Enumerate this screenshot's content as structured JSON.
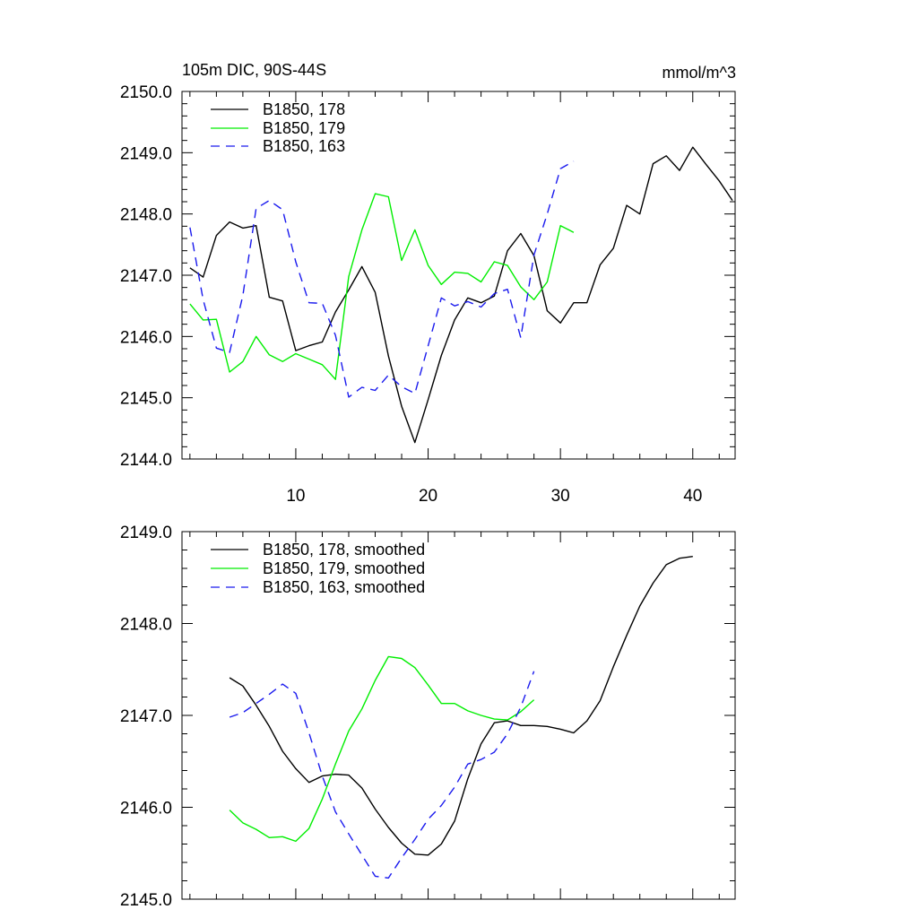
{
  "chart_data": [
    {
      "type": "line",
      "title": "105m DIC, 90S-44S",
      "units": "mmol/m^3",
      "xlabel": "",
      "ylabel": "",
      "xlim": [
        1.4,
        43.2
      ],
      "ylim": [
        2144.0,
        2150.0
      ],
      "xticks": [
        10,
        20,
        30,
        40
      ],
      "xtick_labels": [
        "10",
        "20",
        "30",
        "40"
      ],
      "yticks": [
        2144.0,
        2145.0,
        2146.0,
        2147.0,
        2148.0,
        2149.0,
        2150.0
      ],
      "ytick_labels": [
        "2144.0",
        "2145.0",
        "2146.0",
        "2147.0",
        "2148.0",
        "2149.0",
        "2150.0"
      ],
      "legend_position": "top-left",
      "series": [
        {
          "name": "B1850, 178",
          "color": "#000000",
          "dash": "solid",
          "x": [
            2,
            3,
            4,
            5,
            6,
            7,
            8,
            9,
            10,
            11,
            12,
            13,
            14,
            15,
            16,
            17,
            18,
            19,
            20,
            21,
            22,
            23,
            24,
            25,
            26,
            27,
            28,
            29,
            30,
            31,
            32,
            33,
            34,
            35,
            36,
            37,
            38,
            39,
            40,
            41,
            42,
            43
          ],
          "values": [
            2147.12,
            2146.97,
            2147.65,
            2147.87,
            2147.77,
            2147.81,
            2146.64,
            2146.58,
            2145.77,
            2145.85,
            2145.91,
            2146.4,
            2146.76,
            2147.14,
            2146.72,
            2145.68,
            2144.86,
            2144.27,
            2144.97,
            2145.69,
            2146.27,
            2146.63,
            2146.55,
            2146.66,
            2147.4,
            2147.68,
            2147.32,
            2146.42,
            2146.22,
            2146.55,
            2146.55,
            2147.17,
            2147.44,
            2148.14,
            2148.0,
            2148.82,
            2148.95,
            2148.71,
            2149.09,
            2148.81,
            2148.54,
            2148.22
          ]
        },
        {
          "name": "B1850, 179",
          "color": "#00ee00",
          "dash": "solid",
          "x": [
            2,
            3,
            4,
            5,
            6,
            7,
            8,
            9,
            10,
            11,
            12,
            13,
            14,
            15,
            16,
            17,
            18,
            19,
            20,
            21,
            22,
            23,
            24,
            25,
            26,
            27,
            28,
            29,
            30,
            31
          ],
          "values": [
            2146.53,
            2146.27,
            2146.28,
            2145.42,
            2145.59,
            2146.0,
            2145.7,
            2145.59,
            2145.72,
            2145.63,
            2145.54,
            2145.3,
            2146.98,
            2147.74,
            2148.33,
            2148.28,
            2147.24,
            2147.74,
            2147.16,
            2146.85,
            2147.05,
            2147.03,
            2146.89,
            2147.22,
            2147.16,
            2146.81,
            2146.6,
            2146.89,
            2147.81,
            2147.7
          ]
        },
        {
          "name": "B1850, 163",
          "color": "#1a1aee",
          "dash": "dashed",
          "x": [
            2,
            3,
            4,
            5,
            6,
            7,
            8,
            9,
            10,
            11,
            12,
            13,
            14,
            15,
            16,
            17,
            18,
            19,
            20,
            21,
            22,
            23,
            24,
            25,
            26,
            27,
            28,
            29,
            30,
            31
          ],
          "values": [
            2147.78,
            2146.6,
            2145.81,
            2145.74,
            2146.67,
            2148.09,
            2148.22,
            2148.07,
            2147.22,
            2146.55,
            2146.54,
            2146.02,
            2145.01,
            2145.17,
            2145.12,
            2145.37,
            2145.18,
            2145.07,
            2145.85,
            2146.63,
            2146.5,
            2146.57,
            2146.48,
            2146.7,
            2146.77,
            2145.98,
            2147.33,
            2148.0,
            2148.74,
            2148.86
          ]
        }
      ]
    },
    {
      "type": "line",
      "title": "",
      "xlabel": "",
      "ylabel": "",
      "xlim": [
        1.4,
        43.2
      ],
      "ylim": [
        2145.0,
        2149.0
      ],
      "xticks": [
        10,
        20,
        30,
        40
      ],
      "yticks": [
        2145.0,
        2146.0,
        2147.0,
        2148.0,
        2149.0
      ],
      "ytick_labels": [
        "2145.0",
        "2146.0",
        "2147.0",
        "2148.0",
        "2149.0"
      ],
      "legend_position": "top-left",
      "series": [
        {
          "name": "B1850, 178, smoothed",
          "color": "#000000",
          "dash": "solid",
          "x": [
            5,
            6,
            7,
            8,
            9,
            10,
            11,
            12,
            13,
            14,
            15,
            16,
            17,
            18,
            19,
            20,
            21,
            22,
            23,
            24,
            25,
            26,
            27,
            28,
            29,
            30,
            31,
            32,
            33,
            34,
            35,
            36,
            37,
            38,
            39,
            40
          ],
          "values": [
            2147.41,
            2147.32,
            2147.11,
            2146.88,
            2146.61,
            2146.42,
            2146.27,
            2146.34,
            2146.36,
            2146.35,
            2146.21,
            2145.98,
            2145.78,
            2145.61,
            2145.49,
            2145.48,
            2145.6,
            2145.85,
            2146.31,
            2146.69,
            2146.92,
            2146.94,
            2146.89,
            2146.89,
            2146.88,
            2146.85,
            2146.81,
            2146.94,
            2147.16,
            2147.53,
            2147.87,
            2148.19,
            2148.44,
            2148.64,
            2148.71,
            2148.73
          ]
        },
        {
          "name": "B1850, 179, smoothed",
          "color": "#00ee00",
          "dash": "solid",
          "x": [
            5,
            6,
            7,
            8,
            9,
            10,
            11,
            12,
            13,
            14,
            15,
            16,
            17,
            18,
            19,
            20,
            21,
            22,
            23,
            24,
            25,
            26,
            27,
            28
          ],
          "values": [
            2145.97,
            2145.83,
            2145.76,
            2145.67,
            2145.68,
            2145.63,
            2145.77,
            2146.09,
            2146.47,
            2146.83,
            2147.07,
            2147.38,
            2147.64,
            2147.62,
            2147.52,
            2147.33,
            2147.13,
            2147.13,
            2147.05,
            2147.0,
            2146.96,
            2146.95,
            2147.04,
            2147.17
          ]
        },
        {
          "name": "B1850, 163, smoothed",
          "color": "#1a1aee",
          "dash": "dashed",
          "x": [
            5,
            6,
            7,
            8,
            9,
            10,
            11,
            12,
            13,
            14,
            15,
            16,
            17,
            18,
            19,
            20,
            21,
            22,
            23,
            24,
            25,
            26,
            27,
            28
          ],
          "values": [
            2146.98,
            2147.03,
            2147.13,
            2147.23,
            2147.34,
            2147.24,
            2146.81,
            2146.34,
            2145.95,
            2145.71,
            2145.48,
            2145.25,
            2145.23,
            2145.45,
            2145.65,
            2145.87,
            2146.02,
            2146.22,
            2146.47,
            2146.52,
            2146.6,
            2146.8,
            2147.09,
            2147.48
          ]
        }
      ]
    }
  ]
}
